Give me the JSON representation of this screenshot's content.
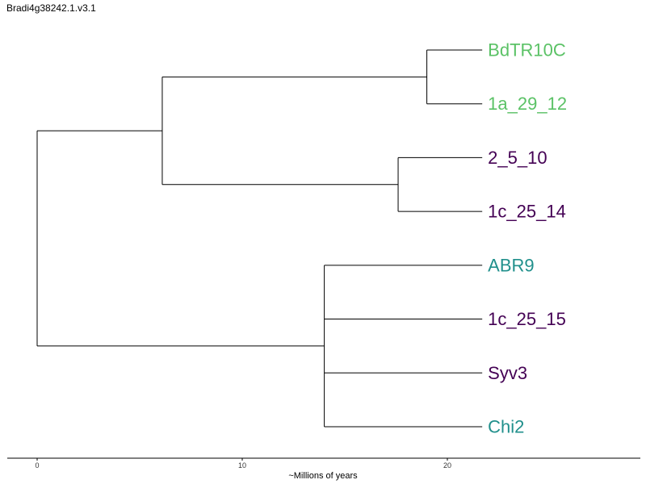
{
  "title": "Bradi4g38242.1.v3.1",
  "axis": {
    "title": "~Millions of years",
    "ticks": [
      "0",
      "10",
      "20"
    ],
    "tick_values": [
      0,
      10,
      20
    ]
  },
  "colors": {
    "green": "#5bc266",
    "teal": "#21908c",
    "purple": "#440154"
  },
  "tree": {
    "tips": [
      {
        "name": "BdTR10C",
        "color": "green"
      },
      {
        "name": "1a_29_12",
        "color": "green"
      },
      {
        "name": "2_5_10",
        "color": "purple"
      },
      {
        "name": "1c_25_14",
        "color": "purple"
      },
      {
        "name": "ABR9",
        "color": "teal"
      },
      {
        "name": "1c_25_15",
        "color": "purple"
      },
      {
        "name": "Syv3",
        "color": "purple"
      },
      {
        "name": "Chi2",
        "color": "teal"
      }
    ],
    "tip_age": 21.7,
    "nodes": [
      {
        "id": "n1",
        "age": 0.0,
        "children": [
          "n2",
          "n4"
        ]
      },
      {
        "id": "n2",
        "age": 6.1,
        "children": [
          "n3",
          "n5"
        ]
      },
      {
        "id": "n3",
        "age": 19.0,
        "children": [
          0,
          1
        ]
      },
      {
        "id": "n5",
        "age": 17.6,
        "children": [
          2,
          3
        ]
      },
      {
        "id": "n4",
        "age": 14.0,
        "children": [
          4,
          5,
          6,
          7
        ]
      }
    ]
  }
}
